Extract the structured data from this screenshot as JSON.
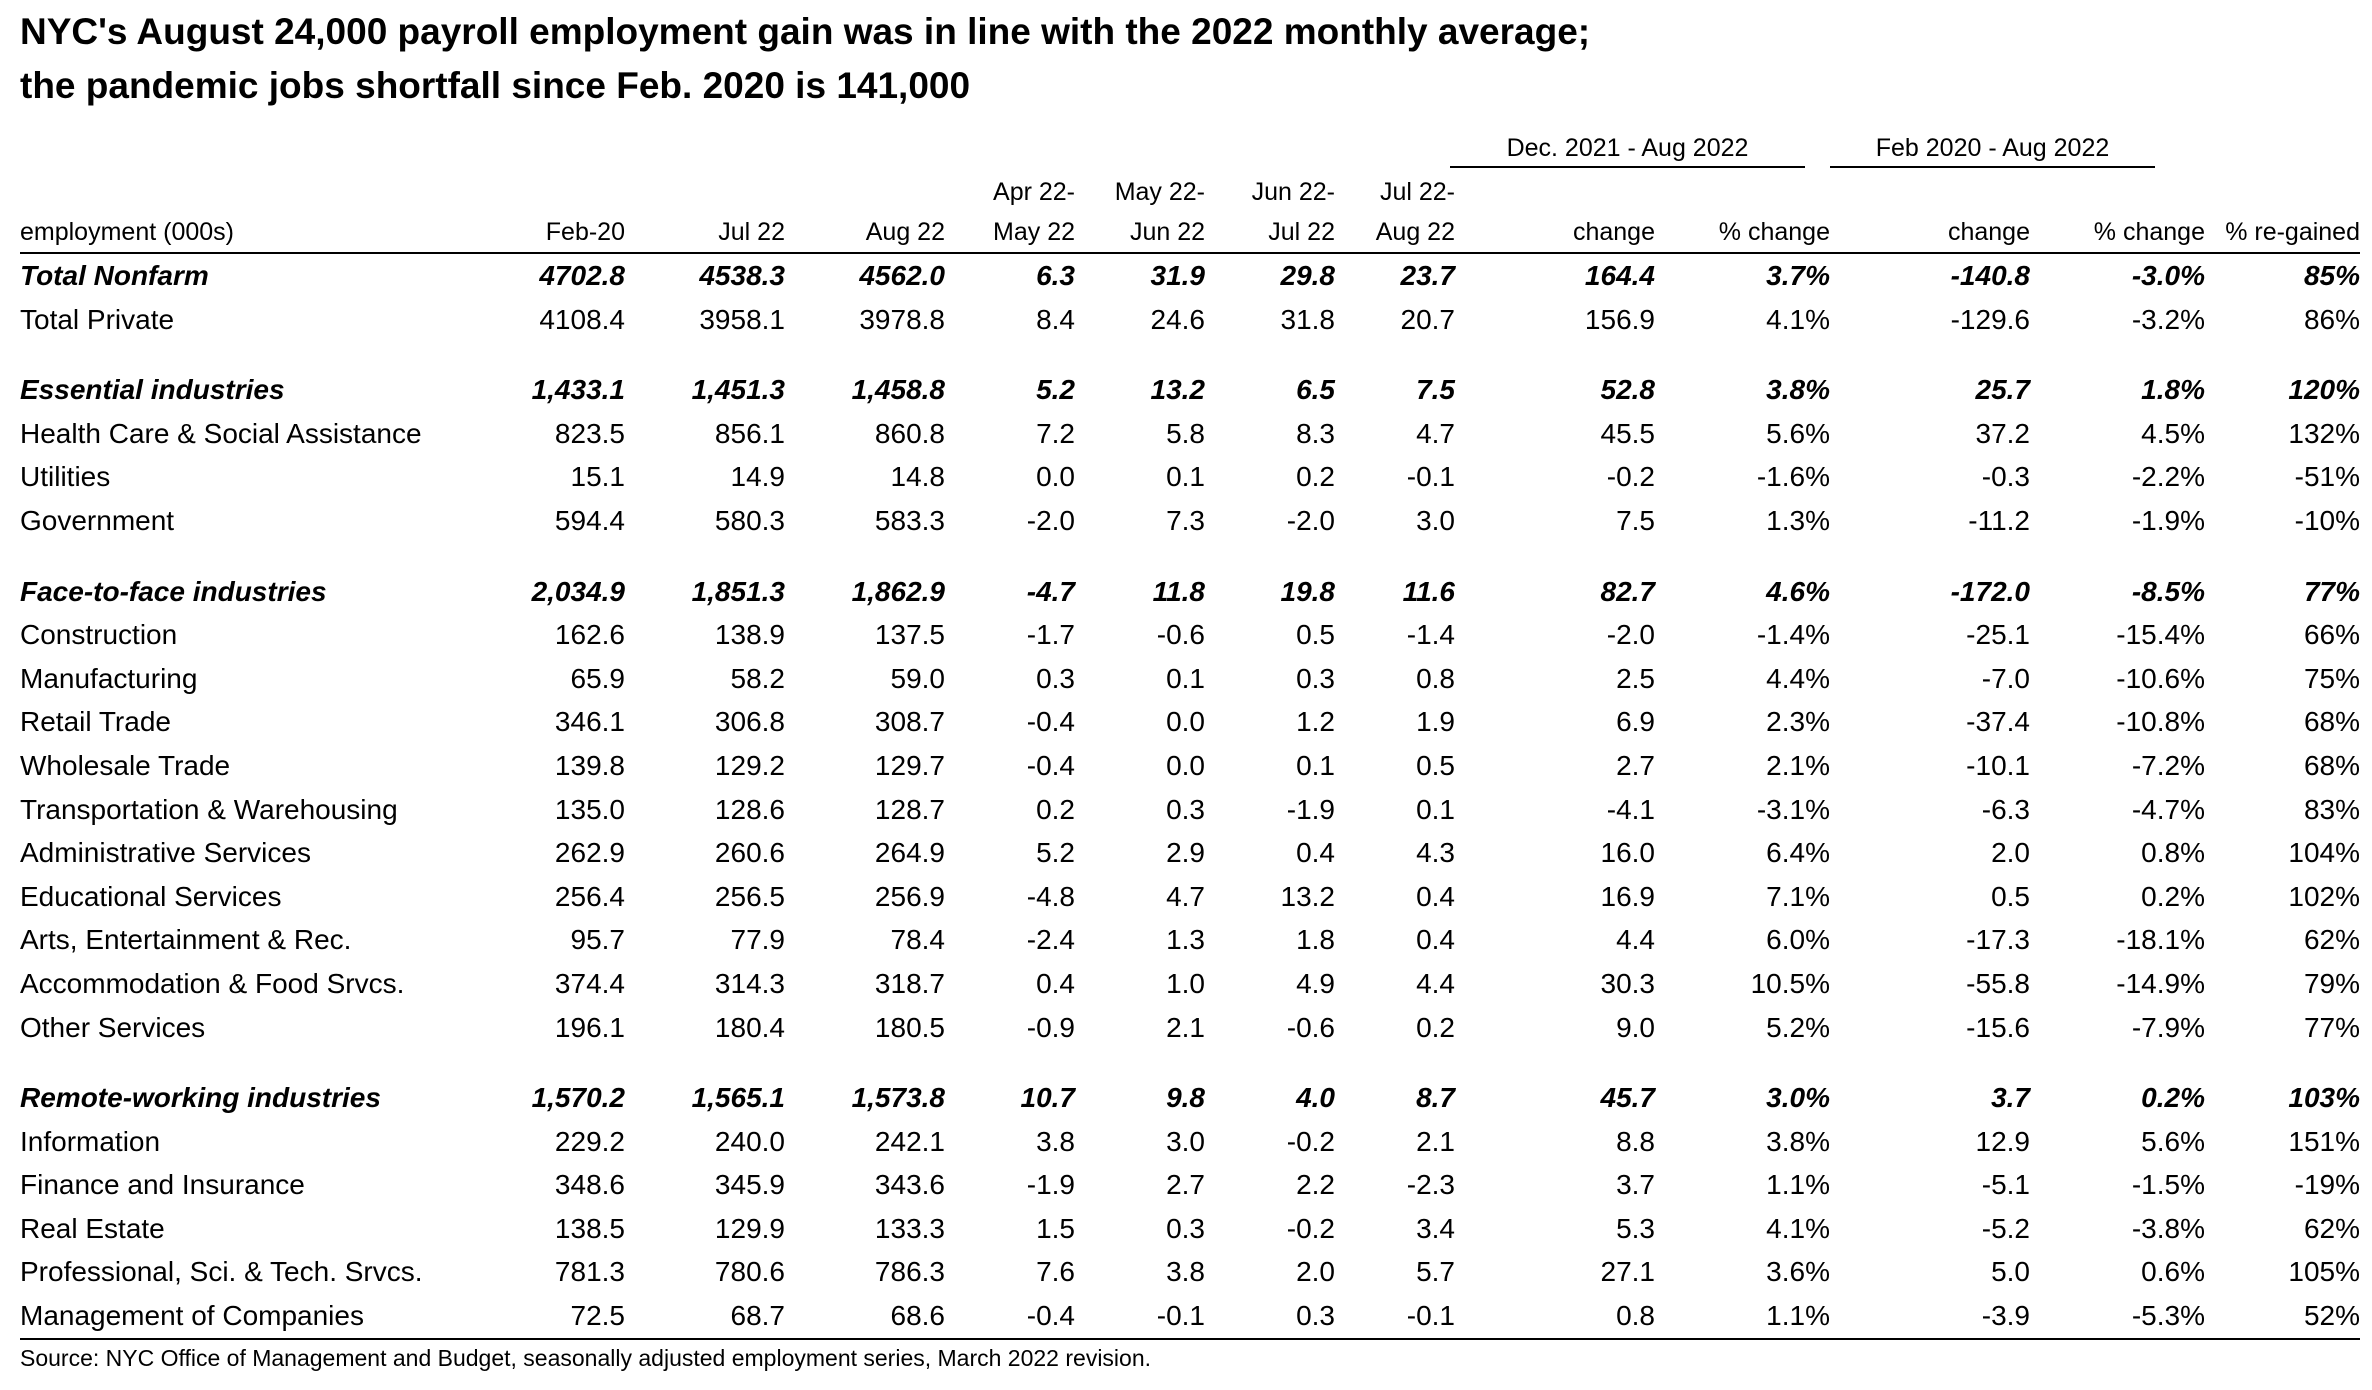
{
  "title": {
    "line1": "NYC's August 24,000 payroll employment gain was in line with the 2022 monthly average;",
    "line2": "the pandemic jobs shortfall since Feb. 2020 is 141,000"
  },
  "group_headers": {
    "dec_aug": "Dec. 2021 - Aug 2022",
    "feb_aug": "Feb 2020 - Aug 2022"
  },
  "columns": [
    "employment (000s)",
    "Feb-20",
    "Jul 22",
    "Aug 22",
    "Apr 22-\nMay 22",
    "May 22-\nJun 22",
    "Jun 22-\nJul 22",
    "Jul 22-\nAug 22",
    "change",
    "% change",
    "change",
    "% change",
    "% re-gained"
  ],
  "rows": [
    {
      "type": "bold",
      "cells": [
        "Total Nonfarm",
        "4702.8",
        "4538.3",
        "4562.0",
        "6.3",
        "31.9",
        "29.8",
        "23.7",
        "164.4",
        "3.7%",
        "-140.8",
        "-3.0%",
        "85%"
      ]
    },
    {
      "type": "normal",
      "cells": [
        "Total Private",
        "4108.4",
        "3958.1",
        "3978.8",
        "8.4",
        "24.6",
        "31.8",
        "20.7",
        "156.9",
        "4.1%",
        "-129.6",
        "-3.2%",
        "86%"
      ]
    },
    {
      "type": "spacer"
    },
    {
      "type": "bold",
      "cells": [
        "Essential industries",
        "1,433.1",
        "1,451.3",
        "1,458.8",
        "5.2",
        "13.2",
        "6.5",
        "7.5",
        "52.8",
        "3.8%",
        "25.7",
        "1.8%",
        "120%"
      ]
    },
    {
      "type": "normal",
      "cells": [
        "Health Care & Social Assistance",
        "823.5",
        "856.1",
        "860.8",
        "7.2",
        "5.8",
        "8.3",
        "4.7",
        "45.5",
        "5.6%",
        "37.2",
        "4.5%",
        "132%"
      ]
    },
    {
      "type": "normal",
      "cells": [
        "Utilities",
        "15.1",
        "14.9",
        "14.8",
        "0.0",
        "0.1",
        "0.2",
        "-0.1",
        "-0.2",
        "-1.6%",
        "-0.3",
        "-2.2%",
        "-51%"
      ]
    },
    {
      "type": "normal",
      "cells": [
        "Government",
        "594.4",
        "580.3",
        "583.3",
        "-2.0",
        "7.3",
        "-2.0",
        "3.0",
        "7.5",
        "1.3%",
        "-11.2",
        "-1.9%",
        "-10%"
      ]
    },
    {
      "type": "spacer"
    },
    {
      "type": "bold",
      "cells": [
        "Face-to-face industries",
        "2,034.9",
        "1,851.3",
        "1,862.9",
        "-4.7",
        "11.8",
        "19.8",
        "11.6",
        "82.7",
        "4.6%",
        "-172.0",
        "-8.5%",
        "77%"
      ]
    },
    {
      "type": "normal",
      "cells": [
        "Construction",
        "162.6",
        "138.9",
        "137.5",
        "-1.7",
        "-0.6",
        "0.5",
        "-1.4",
        "-2.0",
        "-1.4%",
        "-25.1",
        "-15.4%",
        "66%"
      ]
    },
    {
      "type": "normal",
      "cells": [
        "Manufacturing",
        "65.9",
        "58.2",
        "59.0",
        "0.3",
        "0.1",
        "0.3",
        "0.8",
        "2.5",
        "4.4%",
        "-7.0",
        "-10.6%",
        "75%"
      ]
    },
    {
      "type": "normal",
      "cells": [
        "Retail Trade",
        "346.1",
        "306.8",
        "308.7",
        "-0.4",
        "0.0",
        "1.2",
        "1.9",
        "6.9",
        "2.3%",
        "-37.4",
        "-10.8%",
        "68%"
      ]
    },
    {
      "type": "normal",
      "cells": [
        "Wholesale Trade",
        "139.8",
        "129.2",
        "129.7",
        "-0.4",
        "0.0",
        "0.1",
        "0.5",
        "2.7",
        "2.1%",
        "-10.1",
        "-7.2%",
        "68%"
      ]
    },
    {
      "type": "normal",
      "cells": [
        "Transportation & Warehousing",
        "135.0",
        "128.6",
        "128.7",
        "0.2",
        "0.3",
        "-1.9",
        "0.1",
        "-4.1",
        "-3.1%",
        "-6.3",
        "-4.7%",
        "83%"
      ]
    },
    {
      "type": "normal",
      "cells": [
        "Administrative Services",
        "262.9",
        "260.6",
        "264.9",
        "5.2",
        "2.9",
        "0.4",
        "4.3",
        "16.0",
        "6.4%",
        "2.0",
        "0.8%",
        "104%"
      ]
    },
    {
      "type": "normal",
      "cells": [
        "Educational Services",
        "256.4",
        "256.5",
        "256.9",
        "-4.8",
        "4.7",
        "13.2",
        "0.4",
        "16.9",
        "7.1%",
        "0.5",
        "0.2%",
        "102%"
      ]
    },
    {
      "type": "normal",
      "cells": [
        "Arts, Entertainment & Rec.",
        "95.7",
        "77.9",
        "78.4",
        "-2.4",
        "1.3",
        "1.8",
        "0.4",
        "4.4",
        "6.0%",
        "-17.3",
        "-18.1%",
        "62%"
      ]
    },
    {
      "type": "normal",
      "cells": [
        "Accommodation & Food Srvcs.",
        "374.4",
        "314.3",
        "318.7",
        "0.4",
        "1.0",
        "4.9",
        "4.4",
        "30.3",
        "10.5%",
        "-55.8",
        "-14.9%",
        "79%"
      ]
    },
    {
      "type": "normal",
      "cells": [
        "Other Services",
        "196.1",
        "180.4",
        "180.5",
        "-0.9",
        "2.1",
        "-0.6",
        "0.2",
        "9.0",
        "5.2%",
        "-15.6",
        "-7.9%",
        "77%"
      ]
    },
    {
      "type": "spacer"
    },
    {
      "type": "bold",
      "cells": [
        "Remote-working industries",
        "1,570.2",
        "1,565.1",
        "1,573.8",
        "10.7",
        "9.8",
        "4.0",
        "8.7",
        "45.7",
        "3.0%",
        "3.7",
        "0.2%",
        "103%"
      ]
    },
    {
      "type": "normal",
      "cells": [
        "Information",
        "229.2",
        "240.0",
        "242.1",
        "3.8",
        "3.0",
        "-0.2",
        "2.1",
        "8.8",
        "3.8%",
        "12.9",
        "5.6%",
        "151%"
      ]
    },
    {
      "type": "normal",
      "cells": [
        "Finance and Insurance",
        "348.6",
        "345.9",
        "343.6",
        "-1.9",
        "2.7",
        "2.2",
        "-2.3",
        "3.7",
        "1.1%",
        "-5.1",
        "-1.5%",
        "-19%"
      ]
    },
    {
      "type": "normal",
      "cells": [
        "Real Estate",
        "138.5",
        "129.9",
        "133.3",
        "1.5",
        "0.3",
        "-0.2",
        "3.4",
        "5.3",
        "4.1%",
        "-5.2",
        "-3.8%",
        "62%"
      ]
    },
    {
      "type": "normal",
      "cells": [
        "Professional, Sci. & Tech. Srvcs.",
        "781.3",
        "780.6",
        "786.3",
        "7.6",
        "3.8",
        "2.0",
        "5.7",
        "27.1",
        "3.6%",
        "5.0",
        "0.6%",
        "105%"
      ]
    },
    {
      "type": "normal",
      "cells": [
        "Management of Companies",
        "72.5",
        "68.7",
        "68.6",
        "-0.4",
        "-0.1",
        "0.3",
        "-0.1",
        "0.8",
        "1.1%",
        "-3.9",
        "-5.3%",
        "52%"
      ]
    }
  ],
  "source": "Source: NYC Office of Management and Budget, seasonally adjusted employment series, March 2022 revision."
}
